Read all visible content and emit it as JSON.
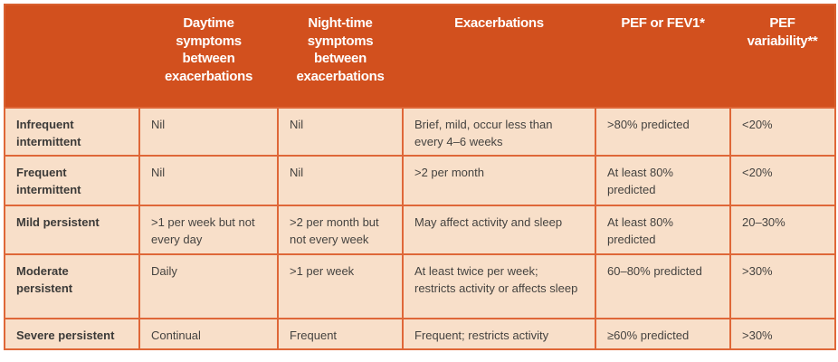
{
  "colors": {
    "header_bg": "#d2501e",
    "cell_bg": "#f8dfc9",
    "border": "#df6738",
    "header_text": "#ffffff",
    "row_label_text": "#3b3a38",
    "body_text": "#454340"
  },
  "table": {
    "columns": [
      "",
      "Daytime symptoms between exacerbations",
      "Night-time symptoms between exacerbations",
      "Exacerbations",
      "PEF or FEV1*",
      "PEF variability**"
    ],
    "rows": [
      {
        "cells": [
          "Infrequent intermittent",
          "Nil",
          "Nil",
          "Brief, mild, occur less than every 4–6 weeks",
          ">80% predicted",
          "<20%"
        ]
      },
      {
        "cells": [
          "Frequent intermittent",
          "Nil",
          "Nil",
          ">2 per month",
          "At least 80% predicted",
          "<20%"
        ]
      },
      {
        "cells": [
          "Mild persistent",
          ">1 per week but not every day",
          ">2 per month but not every week",
          "May affect activity and sleep",
          "At least 80% predicted",
          "20–30%"
        ]
      },
      {
        "cells": [
          "Moderate persistent",
          "Daily",
          ">1 per week",
          "At least twice per week; restricts activity or affects sleep",
          "60–80% predicted",
          ">30%"
        ]
      },
      {
        "cells": [
          "Severe persistent",
          "Continual",
          "Frequent",
          "Frequent; restricts activity",
          "≥60% predicted",
          ">30%"
        ]
      }
    ]
  }
}
